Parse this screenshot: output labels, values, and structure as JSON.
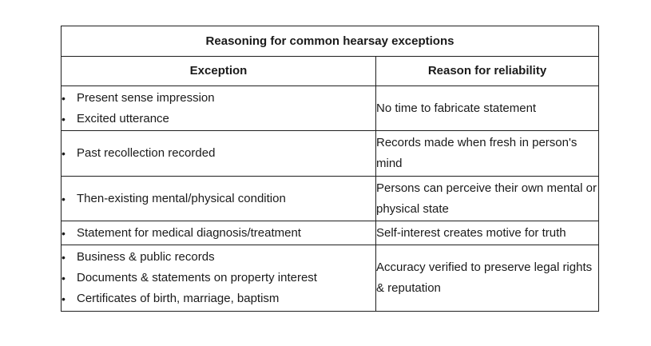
{
  "table": {
    "title": "Reasoning for common hearsay exceptions",
    "headers": {
      "exception": "Exception",
      "reason": "Reason for reliability"
    },
    "rows": [
      {
        "exceptions": [
          "Present sense impression",
          "Excited utterance"
        ],
        "reason": "No time to fabricate statement"
      },
      {
        "exceptions": [
          "Past recollection recorded"
        ],
        "reason": "Records made when fresh in person's mind"
      },
      {
        "exceptions": [
          "Then-existing mental/physical condition"
        ],
        "reason": "Persons can perceive their own mental or physical state"
      },
      {
        "exceptions": [
          "Statement for medical diagnosis/treatment"
        ],
        "reason": "Self-interest creates motive for truth"
      },
      {
        "exceptions": [
          "Business & public records",
          "Documents & statements on property interest",
          "Certificates of birth, marriage, baptism"
        ],
        "reason": "Accuracy verified to preserve legal rights & reputation"
      }
    ]
  }
}
